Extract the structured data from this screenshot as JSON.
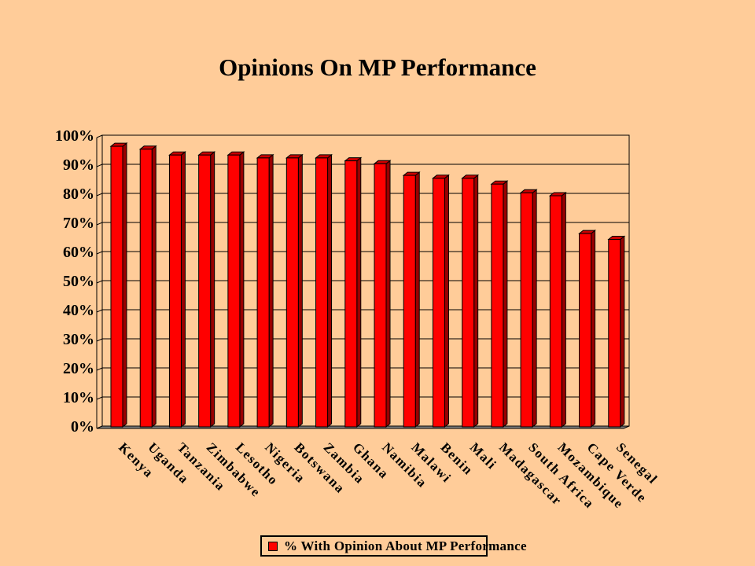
{
  "chart_data": {
    "type": "bar",
    "title": "Opinions On MP Performance",
    "categories": [
      "Kenya",
      "Uganda",
      "Tanzania",
      "Zimbabwe",
      "Lesotho",
      "Nigeria",
      "Botswana",
      "Zambia",
      "Ghana",
      "Namibia",
      "Malawi",
      "Benin",
      "Mali",
      "Madagascar",
      "South Africa",
      "Mozambique",
      "Cape Verde",
      "Senegal"
    ],
    "series": [
      {
        "name": "% With Opinion About MP Performance",
        "values": [
          97,
          96,
          94,
          94,
          94,
          93,
          93,
          93,
          92,
          91,
          87,
          86,
          86,
          84,
          81,
          80,
          67,
          65
        ],
        "color": "#FF0000"
      }
    ],
    "y_ticks": [
      "0%",
      "10%",
      "20%",
      "30%",
      "40%",
      "50%",
      "60%",
      "70%",
      "80%",
      "90%",
      "100%"
    ],
    "ylim": [
      0,
      100
    ],
    "y_unit": "percent",
    "grid": true,
    "legend_position": "bottom-center",
    "xlabel": "",
    "ylabel": ""
  },
  "colors": {
    "background": "#FFCC99",
    "bar_front": "#FF0000",
    "bar_side": "#990000",
    "bar_top": "#CC0000",
    "floor": "#808080"
  }
}
